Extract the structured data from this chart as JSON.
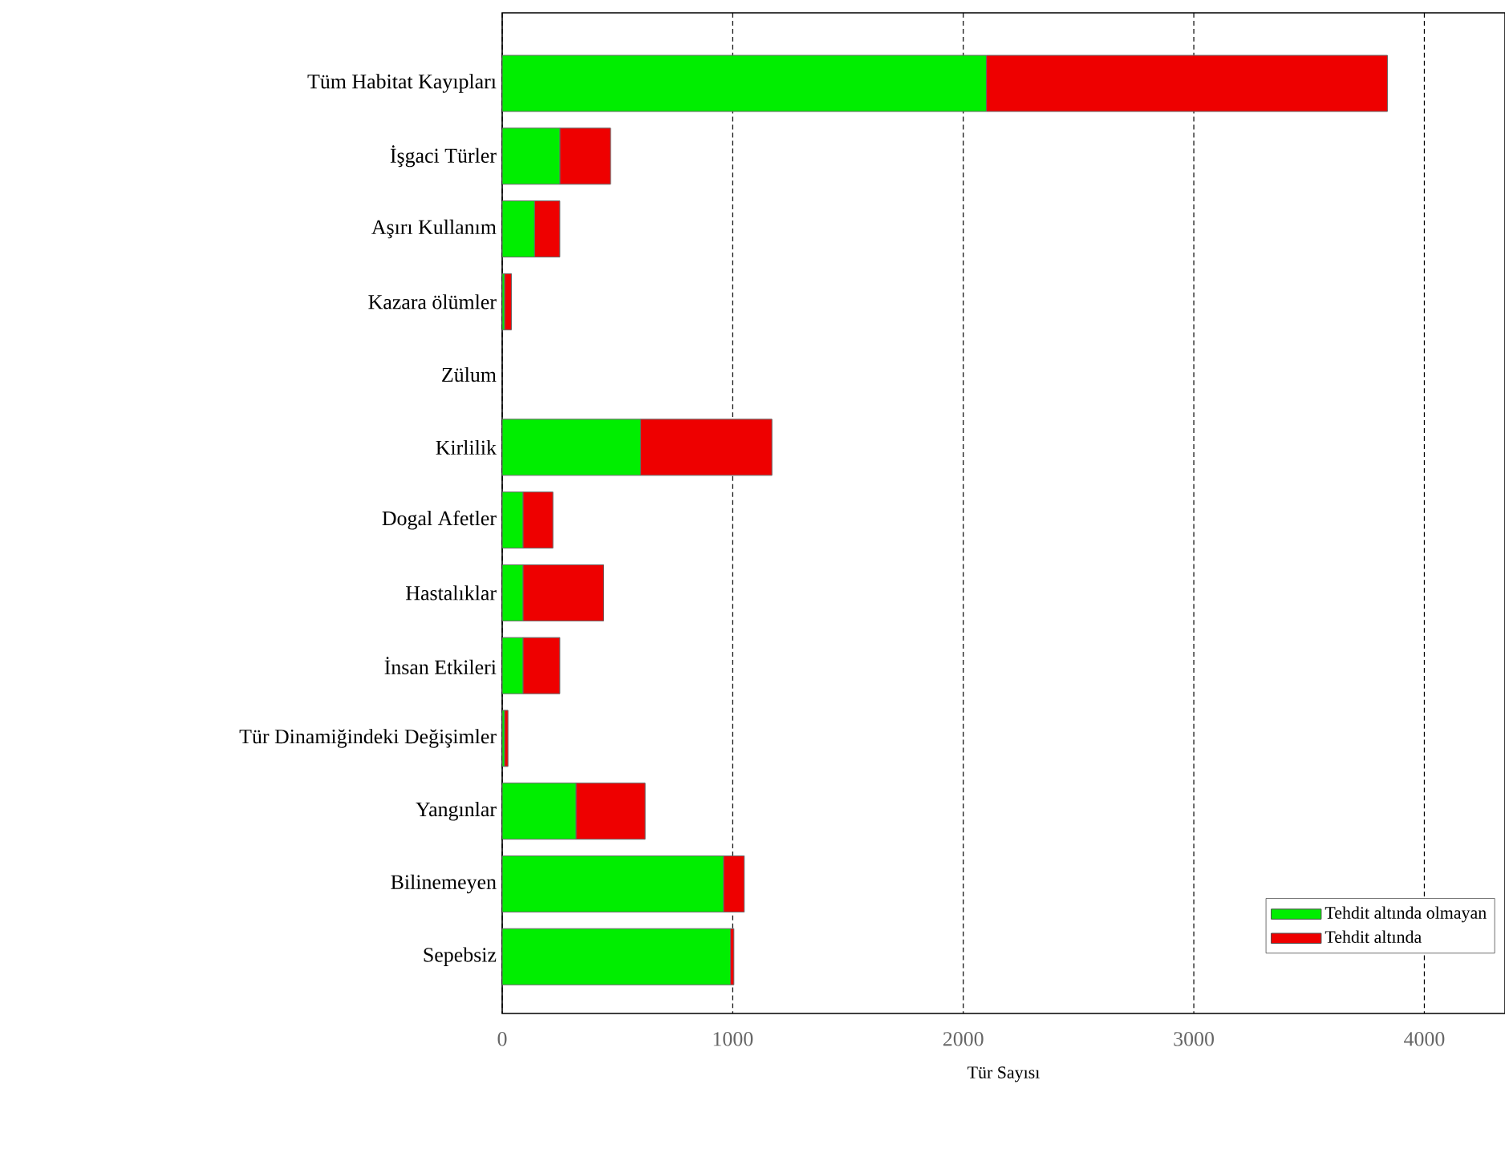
{
  "chart_data": {
    "type": "bar",
    "orientation": "horizontal",
    "stacked": true,
    "xlabel": "Tür Sayısı",
    "categories": [
      "Tüm Habitat Kayıpları",
      "İşgaci Türler",
      "Aşırı Kullanım",
      "Kazara ölümler",
      "Zülum",
      "Kirlilik",
      "Dogal Afetler",
      "Hastalıklar",
      "İnsan Etkileri",
      "Tür Dinamiğindeki Değişimler",
      "Yangınlar",
      "Bilinemeyen",
      "Sepebsiz"
    ],
    "series": [
      {
        "name": "Tehdit altında olmayan",
        "color": "#00ee00",
        "values": [
          2100,
          250,
          140,
          10,
          0,
          600,
          90,
          90,
          90,
          10,
          320,
          960,
          990
        ]
      },
      {
        "name": "Tehdit altında",
        "color": "#ee0000",
        "values": [
          1740,
          220,
          110,
          30,
          0,
          570,
          130,
          350,
          160,
          15,
          300,
          90,
          15
        ]
      }
    ],
    "xlim": [
      0,
      4350
    ],
    "xticks": [
      0,
      1000,
      2000,
      3000,
      4000
    ],
    "grid": "x",
    "legend": "bottom right"
  }
}
